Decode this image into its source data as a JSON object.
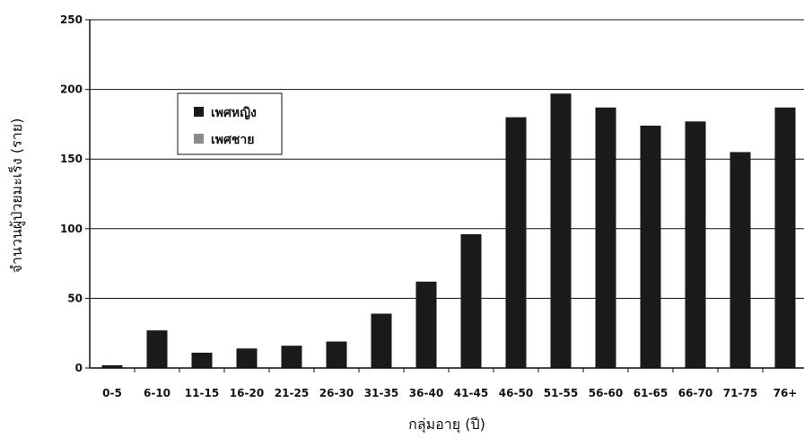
{
  "chart_data": {
    "type": "bar",
    "title": "",
    "xlabel": "กลุ่มอายุ (ปี)",
    "ylabel": "จำนวนผู้ป่วยมะเร็ง (ราย)",
    "ylim": [
      0,
      250
    ],
    "yticks": [
      0,
      50,
      100,
      150,
      200,
      250
    ],
    "grid": true,
    "legend_position": "top-left",
    "categories": [
      "0-5",
      "6-10",
      "11-15",
      "16-20",
      "21-25",
      "26-30",
      "31-35",
      "36-40",
      "41-45",
      "46-50",
      "51-55",
      "56-60",
      "61-65",
      "66-70",
      "71-75",
      "76+"
    ],
    "series": [
      {
        "name": "เพศหญิง",
        "color": "#1a1a1a",
        "values": [
          2,
          27,
          11,
          14,
          16,
          19,
          39,
          62,
          96,
          180,
          197,
          187,
          174,
          177,
          155,
          187
        ]
      },
      {
        "name": "เพศชาย",
        "color": "#8a8a8a",
        "values": [
          0,
          0,
          0,
          0,
          0,
          0,
          0,
          0,
          0,
          0,
          0,
          0,
          0,
          0,
          0,
          0
        ]
      }
    ]
  }
}
